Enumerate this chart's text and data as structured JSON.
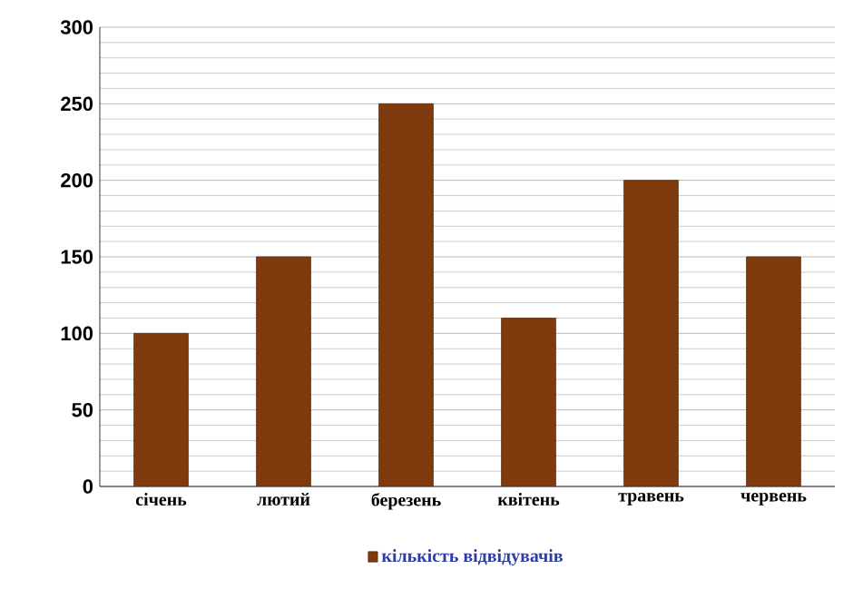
{
  "chart_data": {
    "type": "bar",
    "categories": [
      "січень",
      "лютий",
      "березень",
      "квітень",
      "травень",
      "червень"
    ],
    "series": [
      {
        "name": "кількість відвідувачів",
        "color": "#7f3a0e",
        "values": [
          100,
          150,
          250,
          110,
          200,
          150
        ]
      }
    ],
    "ylim": [
      0,
      300
    ],
    "yticks": [
      0,
      50,
      100,
      150,
      200,
      250,
      300
    ],
    "grid": "y",
    "legend": "bottom"
  }
}
